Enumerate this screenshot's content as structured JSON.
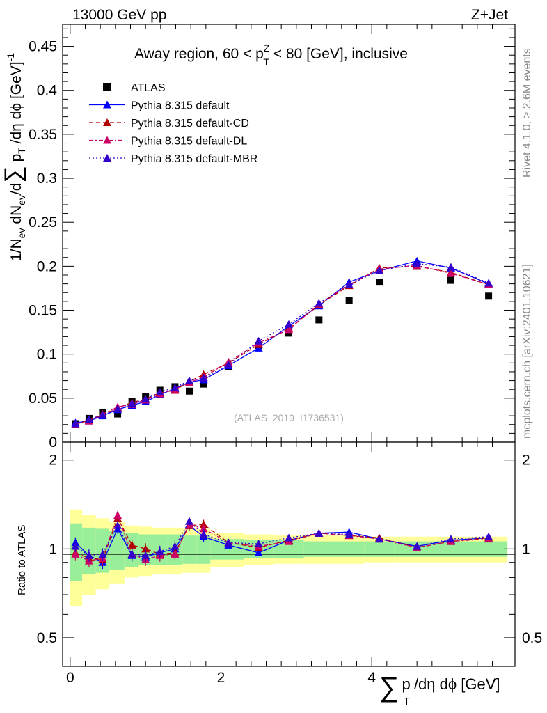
{
  "header": {
    "energy": "13000 GeV pp",
    "process": "Z+Jet"
  },
  "chart_data": {
    "type": "scatter",
    "title_main": "Away region, 60 < p",
    "title_sup": "Z",
    "title_sub": "T",
    "title_rest": " < 80 [GeV], inclusive",
    "analysis_tag": "(ATLAS_2019_I1736531)",
    "side_rivet": "Rivet 4.1.0, ≥ 2.6M events",
    "side_mcplots": "mcplots.cern.ch [arXiv:2401.10621]",
    "ylabel_top": "1/N_ev dN_ev/d∑ p_T /dη dϕ [GeV]^-1",
    "ylabel_top_parts": {
      "a": "1/N",
      "a_sub": "ev",
      "b": " dN",
      "b_sub": "ev",
      "c": "/d",
      "sum": "∑",
      "p": " p",
      "p_sub": "T",
      "d": " /dη dϕ  [GeV]",
      "exp": "-1"
    },
    "ylabel_ratio": "Ratio to ATLAS",
    "xlabel_parts": {
      "sum": "∑",
      "p": "p",
      "p_sub": "T",
      "rest": "/dη dϕ [GeV]"
    },
    "xlim": [
      -0.1,
      5.9
    ],
    "ylim_top": [
      0,
      0.475
    ],
    "ylim_ratio": [
      0.4,
      2.3
    ],
    "x_ticks": [
      "0",
      "2",
      "4"
    ],
    "y_ticks_top": [
      "0",
      "0.05",
      "0.1",
      "0.15",
      "0.2",
      "0.25",
      "0.3",
      "0.35",
      "0.4",
      "0.45"
    ],
    "y_ticks_ratio": [
      "0.5",
      "1",
      "2"
    ],
    "x": [
      0.07,
      0.25,
      0.43,
      0.63,
      0.82,
      1.0,
      1.19,
      1.39,
      1.58,
      1.77,
      2.1,
      2.5,
      2.9,
      3.3,
      3.7,
      4.1,
      4.6,
      5.05,
      5.55
    ],
    "series": [
      {
        "name": "ATLAS",
        "color": "#000000",
        "marker": "square",
        "values": [
          0.021,
          0.027,
          0.034,
          0.032,
          0.046,
          0.052,
          0.059,
          0.063,
          0.058,
          0.066,
          0.086,
          0.11,
          0.124,
          0.139,
          0.161,
          0.182,
          0.2,
          0.184,
          0.166
        ]
      },
      {
        "name": "Pythia 8.315 default",
        "color": "#0000ff",
        "dash": "",
        "values": [
          0.022,
          0.024,
          0.03,
          0.037,
          0.042,
          0.046,
          0.054,
          0.061,
          0.068,
          0.071,
          0.087,
          0.107,
          0.132,
          0.155,
          0.182,
          0.195,
          0.206,
          0.198,
          0.18
        ],
        "ratio": [
          1.05,
          0.95,
          0.9,
          1.17,
          0.95,
          0.94,
          0.97,
          1.0,
          1.2,
          1.1,
          1.03,
          0.97,
          1.07,
          1.13,
          1.14,
          1.08,
          1.02,
          1.07,
          1.09
        ]
      },
      {
        "name": "Pythia 8.315 default-CD",
        "color": "#b30000",
        "dash": "6,4",
        "values": [
          0.02,
          0.025,
          0.031,
          0.039,
          0.045,
          0.049,
          0.056,
          0.059,
          0.069,
          0.077,
          0.09,
          0.111,
          0.129,
          0.156,
          0.178,
          0.198,
          0.2,
          0.193,
          0.179
        ],
        "ratio": [
          0.97,
          0.93,
          0.92,
          1.27,
          1.03,
          1.0,
          0.96,
          0.97,
          1.2,
          1.21,
          1.05,
          1.01,
          1.07,
          1.13,
          1.11,
          1.09,
          1.01,
          1.06,
          1.09
        ]
      },
      {
        "name": "Pythia 8.315 default-DL",
        "color": "#cc0066",
        "dash": "6,3,2,3",
        "values": [
          0.02,
          0.024,
          0.032,
          0.04,
          0.043,
          0.048,
          0.055,
          0.06,
          0.068,
          0.074,
          0.091,
          0.113,
          0.128,
          0.157,
          0.179,
          0.197,
          0.201,
          0.192,
          0.179
        ],
        "ratio": [
          0.96,
          0.91,
          0.93,
          1.3,
          0.96,
          0.92,
          0.95,
          0.96,
          1.21,
          1.17,
          1.05,
          1.02,
          1.06,
          1.13,
          1.11,
          1.08,
          1.01,
          1.06,
          1.08
        ]
      },
      {
        "name": "Pythia 8.315 default-MBR",
        "color": "#3300cc",
        "dash": "2,3",
        "values": [
          0.021,
          0.026,
          0.031,
          0.038,
          0.044,
          0.049,
          0.057,
          0.062,
          0.07,
          0.073,
          0.088,
          0.115,
          0.134,
          0.158,
          0.179,
          0.195,
          0.203,
          0.199,
          0.181
        ],
        "ratio": [
          1.02,
          0.95,
          0.96,
          1.2,
          0.96,
          0.95,
          0.98,
          1.02,
          1.24,
          1.12,
          1.05,
          1.04,
          1.09,
          1.13,
          1.12,
          1.08,
          1.02,
          1.08,
          1.1
        ]
      }
    ],
    "bins": [
      0.0,
      0.16,
      0.34,
      0.52,
      0.72,
      0.91,
      1.09,
      1.29,
      1.49,
      1.68,
      1.86,
      2.3,
      2.7,
      3.1,
      3.5,
      3.9,
      4.3,
      4.85,
      5.3,
      5.8
    ],
    "band_green": [
      0.22,
      0.18,
      0.17,
      0.15,
      0.13,
      0.12,
      0.12,
      0.12,
      0.11,
      0.11,
      0.08,
      0.07,
      0.07,
      0.06,
      0.06,
      0.06,
      0.06,
      0.06,
      0.06
    ],
    "band_yellow": [
      0.36,
      0.3,
      0.27,
      0.24,
      0.2,
      0.19,
      0.18,
      0.18,
      0.17,
      0.17,
      0.13,
      0.12,
      0.11,
      0.11,
      0.11,
      0.1,
      0.1,
      0.1,
      0.1
    ],
    "colors": {
      "green_band": "#99ee99",
      "yellow_band": "#ffff99"
    }
  }
}
